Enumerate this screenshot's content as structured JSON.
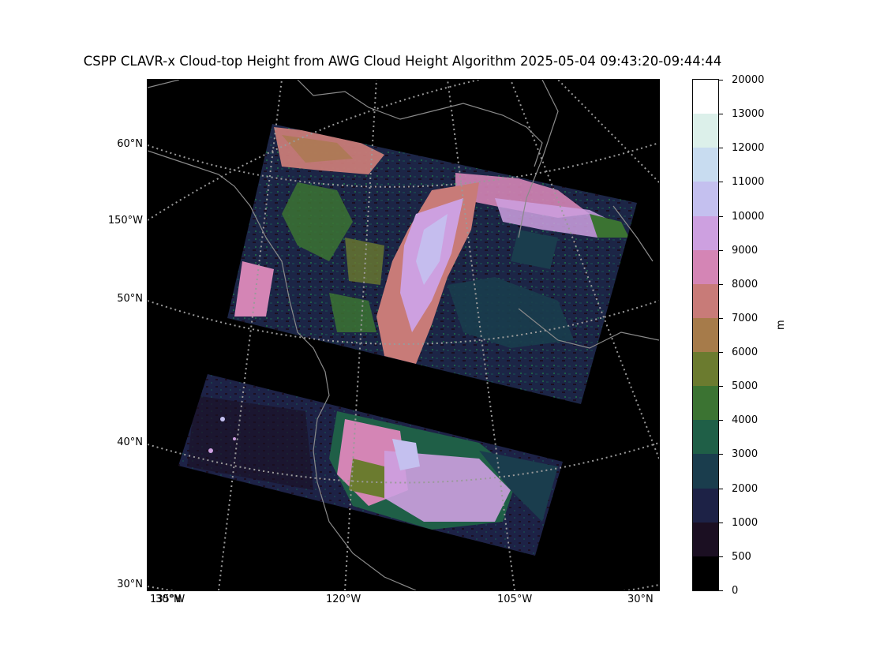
{
  "title": "CSPP CLAVR-x Cloud-top Height from AWG Cloud Height Algorithm 2025-05-04 09:43:20-09:44:44",
  "map": {
    "projection": "polar-stereographic",
    "background_color": "#000000",
    "coastline_color": "#8a8a8a",
    "gridline_color": "#9a9a9a",
    "gridline_style": "dotted",
    "lat_labels": [
      "60°N",
      "150°W",
      "50°N",
      "40°N",
      "30°N"
    ],
    "lon_labels": [
      "135°W",
      "30°N",
      "120°W",
      "105°W",
      "30°N"
    ],
    "swaths": [
      {
        "name": "northern-swath",
        "dominant_classes": [
          "2000-3000",
          "1000-2000",
          "3000-4000",
          "7000-8000",
          "8000-9000",
          "9000-10000"
        ]
      },
      {
        "name": "southern-swath",
        "dominant_classes": [
          "1000-2000",
          "500-1000",
          "4000-5000",
          "8000-9000",
          "10000-11000"
        ]
      }
    ]
  },
  "colorbar": {
    "unit": "m",
    "tick_labels": [
      "20000",
      "13000",
      "12000",
      "11000",
      "10000",
      "9000",
      "8000",
      "7000",
      "6000",
      "5000",
      "4000",
      "3000",
      "2000",
      "1000",
      "500",
      "0"
    ],
    "colors": [
      "#ffffff",
      "#dcf0ea",
      "#c8dcf0",
      "#c4c0ef",
      "#cda0e0",
      "#d485b5",
      "#c87b78",
      "#a67b4a",
      "#6b7b2f",
      "#3b7332",
      "#1f5f47",
      "#1a3d4d",
      "#1d2246",
      "#1b0f22",
      "#000000"
    ]
  }
}
